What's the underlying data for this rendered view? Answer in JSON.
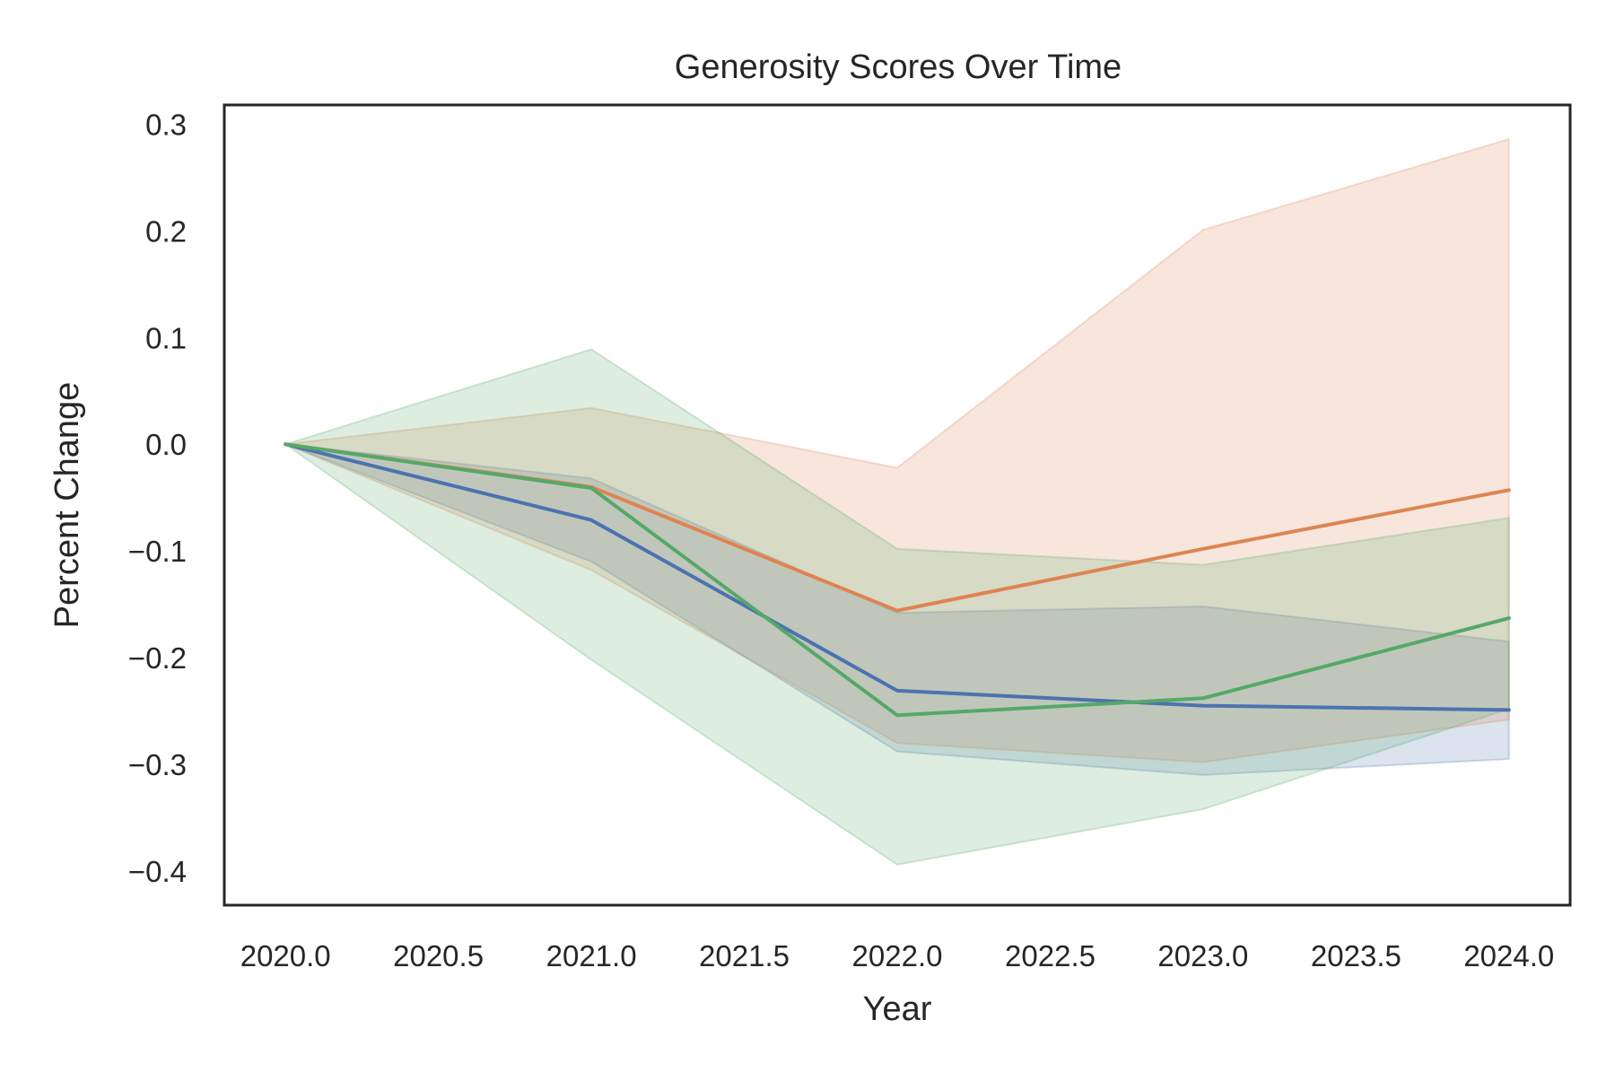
{
  "chart_data": {
    "type": "line",
    "title": "Generosity Scores Over Time",
    "xlabel": "Year",
    "ylabel": "Percent Change",
    "xlim": [
      2019.8,
      2024.2
    ],
    "ylim": [
      -0.432,
      0.318
    ],
    "x_ticks": [
      2020.0,
      2020.5,
      2021.0,
      2021.5,
      2022.0,
      2022.5,
      2023.0,
      2023.5,
      2024.0
    ],
    "x_tick_labels": [
      "2020.0",
      "2020.5",
      "2021.0",
      "2021.5",
      "2022.0",
      "2022.5",
      "2023.0",
      "2023.5",
      "2024.0"
    ],
    "y_ticks": [
      -0.4,
      -0.3,
      -0.2,
      -0.1,
      0.0,
      0.1,
      0.2,
      0.3
    ],
    "y_tick_labels": [
      "−0.4",
      "−0.3",
      "−0.2",
      "−0.1",
      "0.0",
      "0.1",
      "0.2",
      "0.3"
    ],
    "grid": false,
    "x": [
      2020,
      2021,
      2022,
      2023,
      2024
    ],
    "series": [
      {
        "color": "#4c72b0",
        "values": [
          0.0,
          -0.071,
          -0.231,
          -0.245,
          -0.249
        ],
        "lower": [
          0.0,
          -0.11,
          -0.288,
          -0.31,
          -0.295
        ],
        "upper": [
          0.0,
          -0.032,
          -0.158,
          -0.152,
          -0.185
        ]
      },
      {
        "color": "#dd8452",
        "values": [
          0.0,
          -0.04,
          -0.156,
          -0.098,
          -0.043
        ],
        "lower": [
          0.0,
          -0.118,
          -0.28,
          -0.298,
          -0.258
        ],
        "upper": [
          0.0,
          0.034,
          -0.022,
          0.201,
          0.286
        ]
      },
      {
        "color": "#55a868",
        "values": [
          0.0,
          -0.041,
          -0.254,
          -0.238,
          -0.163
        ],
        "lower": [
          0.0,
          -0.202,
          -0.394,
          -0.342,
          -0.248
        ],
        "upper": [
          0.0,
          0.089,
          -0.098,
          -0.113,
          -0.069
        ]
      }
    ]
  }
}
